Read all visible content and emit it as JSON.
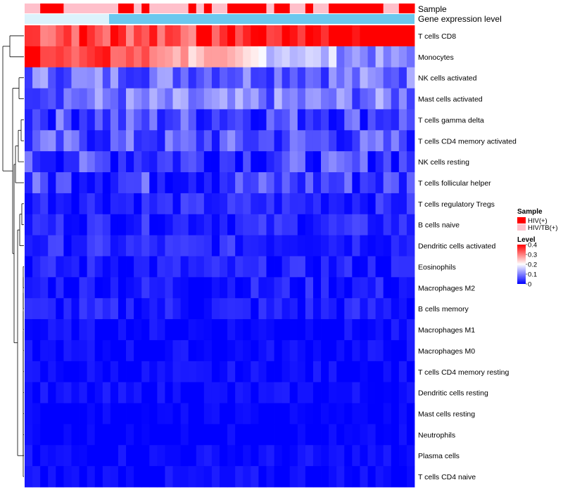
{
  "chart_data": {
    "type": "heatmap",
    "title": "",
    "annotation_tracks": [
      {
        "label": "Sample",
        "kind": "categorical"
      },
      {
        "label": "Gene expression level",
        "kind": "continuous",
        "color": "#6cc8ee"
      }
    ],
    "sample_track_colors": {
      "HIV(+)": "#ff0000",
      "HIV/TB(+)": "#ffc0cb"
    },
    "sample_groups": [
      "HIV/TB(+)",
      "HIV/TB(+)",
      "HIV(+)",
      "HIV(+)",
      "HIV(+)",
      "HIV/TB(+)",
      "HIV/TB(+)",
      "HIV/TB(+)",
      "HIV/TB(+)",
      "HIV/TB(+)",
      "HIV/TB(+)",
      "HIV/TB(+)",
      "HIV(+)",
      "HIV(+)",
      "HIV/TB(+)",
      "HIV(+)",
      "HIV/TB(+)",
      "HIV/TB(+)",
      "HIV/TB(+)",
      "HIV/TB(+)",
      "HIV/TB(+)",
      "HIV(+)",
      "HIV/TB(+)",
      "HIV(+)",
      "HIV/TB(+)",
      "HIV/TB(+)",
      "HIV(+)",
      "HIV(+)",
      "HIV(+)",
      "HIV(+)",
      "HIV(+)",
      "HIV/TB(+)",
      "HIV(+)",
      "HIV(+)",
      "HIV/TB(+)",
      "HIV/TB(+)",
      "HIV(+)",
      "HIV/TB(+)",
      "HIV/TB(+)",
      "HIV(+)",
      "HIV(+)",
      "HIV(+)",
      "HIV(+)",
      "HIV(+)",
      "HIV(+)",
      "HIV(+)",
      "HIV/TB(+)",
      "HIV/TB(+)",
      "HIV(+)",
      "HIV(+)"
    ],
    "rows": [
      "T cells CD8",
      "Monocytes",
      "NK cells activated",
      "Mast cells activated",
      "T cells gamma delta",
      "T cells CD4 memory activated",
      "NK cells resting",
      "T cells follicular helper",
      "T cells regulatory  Tregs",
      "B cells naive",
      "Dendritic cells activated",
      "Eosinophils",
      "Macrophages M2",
      "B cells memory",
      "Macrophages M1",
      "Macrophages M0",
      "T cells CD4 memory resting",
      "Dendritic cells resting",
      "Mast cells resting",
      "Neutrophils",
      "Plasma cells",
      "T cells CD4 naive"
    ],
    "row_base": [
      0.3,
      0.22,
      0.09,
      0.09,
      0.06,
      0.06,
      0.05,
      0.05,
      0.03,
      0.03,
      0.03,
      0.02,
      0.02,
      0.02,
      0.01,
      0.01,
      0.01,
      0.01,
      0.0,
      0.0,
      0.01,
      0.01
    ],
    "col_shift": [
      0.05,
      0.04,
      0.03,
      0.02,
      0.03,
      0.05,
      0.04,
      0.05,
      0.04,
      0.03,
      0.02,
      0.05,
      0.04,
      0.03,
      0.04,
      0.05,
      0.05,
      0.03,
      0.04,
      0.04,
      0.03,
      0.03,
      0.04,
      0.05,
      0.05,
      0.06,
      0.07,
      0.06,
      0.07,
      0.08,
      0.07,
      0.06,
      0.08,
      0.09,
      0.08,
      0.07,
      0.09,
      0.1,
      0.09,
      0.08,
      0.12,
      0.13,
      0.12,
      0.14,
      0.13,
      0.15,
      0.16,
      0.15,
      0.14,
      0.16
    ],
    "mono_shift": [
      0.2,
      0.18,
      0.16,
      0.15,
      0.14,
      0.16,
      0.14,
      0.13,
      0.12,
      0.14,
      0.12,
      0.11,
      0.1,
      0.12,
      0.1,
      0.09,
      0.08,
      0.07,
      0.08,
      0.06,
      0.05,
      0.04,
      0.05,
      0.03,
      0.02,
      0.01,
      0.0,
      -0.01,
      -0.02,
      -0.02,
      -0.03,
      -0.04,
      -0.05,
      -0.04,
      -0.05,
      -0.06,
      -0.07,
      -0.08,
      -0.07,
      -0.08,
      -0.09,
      -0.1,
      -0.1,
      -0.11,
      -0.11,
      -0.12,
      -0.12,
      -0.13,
      -0.12,
      -0.13
    ],
    "legend": {
      "sample_title": "Sample",
      "sample_entries": [
        {
          "label": "HIV(+)",
          "color": "#ff0000"
        },
        {
          "label": "HIV/TB(+)",
          "color": "#ffc0cb"
        }
      ],
      "level_title": "Level",
      "level_ticks": [
        "0.4",
        "0.3",
        "0.2",
        "0.1",
        "0"
      ],
      "level_range": [
        0,
        0.4
      ],
      "colors": {
        "low": "#0000ff",
        "mid": "#ffffff",
        "high": "#ff0000"
      },
      "placement": "right"
    },
    "dendrogram": "row",
    "seed": 7
  }
}
